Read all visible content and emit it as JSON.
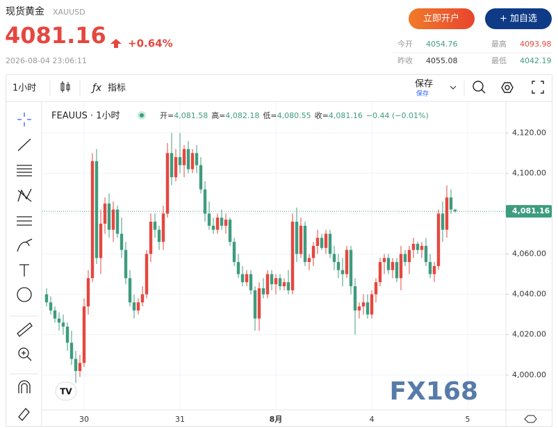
{
  "header": {
    "title": "现货黄金",
    "code": "XAUUSD",
    "price": "4081.16",
    "change": "+0.64%",
    "datetime": "2026-08-04 23:06:11",
    "open_account": "立即开户",
    "add_watch": "+ 加自选"
  },
  "stats": [
    {
      "label": "今开",
      "value": "4054.76"
    },
    {
      "label": "最高",
      "value": "4093.98"
    },
    {
      "label": "昨收",
      "value": "4055.08"
    },
    {
      "label": "最低",
      "value": "4042.19"
    }
  ],
  "toolbar": {
    "interval": "1小时",
    "indicators": "指标",
    "save": "保存",
    "save_sub": "保存"
  },
  "watermark": "FX168",
  "chart_data": {
    "type": "candlestick",
    "title": "FEAUUS · 1小时",
    "legend_items": [
      {
        "label": "开=",
        "value": "4,081.58"
      },
      {
        "label": "高=",
        "value": "4,082.18"
      },
      {
        "label": "低=",
        "value": "4,080.55"
      },
      {
        "label": "收=",
        "value": "4,081.16"
      }
    ],
    "legend_change": "−0.44 (−0.01%)",
    "up_color": "#e5473f",
    "down_color": "#3e9c7e",
    "open": [
      4040,
      4036,
      4032,
      4028,
      4026,
      4024,
      4016,
      4008,
      4002,
      4006,
      4034,
      4048,
      4106,
      4058,
      4075,
      4085,
      4072,
      4082,
      4070,
      4062,
      4048,
      4036,
      4032,
      4036,
      4040,
      4060,
      4076,
      4072,
      4066,
      4080,
      4110,
      4098,
      4108,
      4104,
      4112,
      4102,
      4110,
      4104,
      4092,
      4080,
      4074,
      4072,
      4078,
      4074,
      4077,
      4066,
      4056,
      4050,
      4046,
      4050,
      4042,
      4028,
      4043,
      4040,
      4050,
      4045,
      4048,
      4044,
      4046,
      4042,
      4076,
      4060,
      4074,
      4056,
      4058,
      4064,
      4068,
      4063,
      4070,
      4060,
      4056,
      4052,
      4050,
      4062,
      4044,
      4032,
      4034,
      4036,
      4030,
      4040,
      4046,
      4056,
      4058,
      4052,
      4056,
      4048,
      4060,
      4056,
      4062,
      4065,
      4062,
      4064,
      4056,
      4050,
      4054,
      4080,
      4072,
      4088,
      4082
    ],
    "high": [
      4043,
      4039,
      4034,
      4031,
      4030,
      4026,
      4022,
      4012,
      4010,
      4038,
      4052,
      4110,
      4112,
      4082,
      4088,
      4090,
      4086,
      4084,
      4078,
      4066,
      4052,
      4040,
      4038,
      4044,
      4062,
      4080,
      4080,
      4074,
      4084,
      4115,
      4120,
      4112,
      4120,
      4114,
      4116,
      4112,
      4114,
      4108,
      4096,
      4086,
      4078,
      4080,
      4082,
      4080,
      4078,
      4068,
      4060,
      4054,
      4052,
      4052,
      4044,
      4046,
      4048,
      4052,
      4052,
      4050,
      4050,
      4048,
      4052,
      4080,
      4083,
      4078,
      4076,
      4060,
      4066,
      4072,
      4070,
      4072,
      4072,
      4064,
      4060,
      4058,
      4064,
      4064,
      4048,
      4036,
      4040,
      4040,
      4042,
      4048,
      4058,
      4060,
      4060,
      4058,
      4058,
      4064,
      4062,
      4064,
      4068,
      4066,
      4066,
      4068,
      4060,
      4056,
      4082,
      4086,
      4094,
      4092,
      4082.18
    ],
    "low": [
      4034,
      4030,
      4026,
      4022,
      4020,
      4012,
      4005,
      3996,
      3999,
      4004,
      4030,
      4046,
      4055,
      4050,
      4070,
      4068,
      4066,
      4068,
      4058,
      4045,
      4034,
      4028,
      4030,
      4034,
      4038,
      4056,
      4068,
      4062,
      4062,
      4078,
      4094,
      4096,
      4100,
      4098,
      4100,
      4100,
      4100,
      4090,
      4076,
      4072,
      4070,
      4070,
      4072,
      4070,
      4064,
      4054,
      4048,
      4044,
      4044,
      4040,
      4022,
      4022,
      4038,
      4038,
      4042,
      4040,
      4042,
      4042,
      4040,
      4040,
      4056,
      4058,
      4054,
      4052,
      4054,
      4060,
      4062,
      4060,
      4058,
      4052,
      4048,
      4044,
      4048,
      4040,
      4020,
      4028,
      4030,
      4028,
      4028,
      4036,
      4044,
      4050,
      4050,
      4048,
      4046,
      4042,
      4054,
      4050,
      4058,
      4060,
      4058,
      4054,
      4048,
      4046,
      4052,
      4066,
      4068,
      4080,
      4080.55
    ],
    "close": [
      4036,
      4032,
      4028,
      4026,
      4024,
      4016,
      4008,
      4002,
      4006,
      4034,
      4048,
      4106,
      4058,
      4075,
      4085,
      4072,
      4082,
      4070,
      4062,
      4048,
      4036,
      4032,
      4036,
      4040,
      4060,
      4076,
      4072,
      4066,
      4080,
      4110,
      4098,
      4108,
      4104,
      4112,
      4102,
      4110,
      4104,
      4092,
      4080,
      4074,
      4072,
      4078,
      4074,
      4077,
      4066,
      4056,
      4050,
      4046,
      4050,
      4042,
      4028,
      4043,
      4040,
      4050,
      4045,
      4048,
      4044,
      4046,
      4042,
      4076,
      4060,
      4074,
      4056,
      4058,
      4064,
      4068,
      4063,
      4070,
      4060,
      4056,
      4052,
      4050,
      4062,
      4044,
      4032,
      4034,
      4036,
      4030,
      4040,
      4046,
      4056,
      4058,
      4052,
      4056,
      4048,
      4060,
      4056,
      4062,
      4065,
      4062,
      4064,
      4056,
      4050,
      4054,
      4080,
      4072,
      4088,
      4082,
      4081.16
    ],
    "xticks": [
      {
        "value": 9,
        "label": "30"
      },
      {
        "value": 32,
        "label": "31"
      },
      {
        "value": 55,
        "label": "8月"
      },
      {
        "value": 78,
        "label": "4"
      },
      {
        "value": 101,
        "label": "5"
      }
    ],
    "ylim": [
      3982.7,
      4134.9
    ],
    "yticks": [
      {
        "value": 4000,
        "label": "4,000.00"
      },
      {
        "value": 4020,
        "label": "4,020.00"
      },
      {
        "value": 4040,
        "label": "4,040.00"
      },
      {
        "value": 4060,
        "label": "4,060.00"
      },
      {
        "value": 4080,
        "label": "4,080.00"
      },
      {
        "value": 4100,
        "label": "4,100.00"
      },
      {
        "value": 4120,
        "label": "4,120.00"
      }
    ],
    "last_price": {
      "value": 4081.16,
      "label": "4,081.16"
    },
    "grid": true
  }
}
